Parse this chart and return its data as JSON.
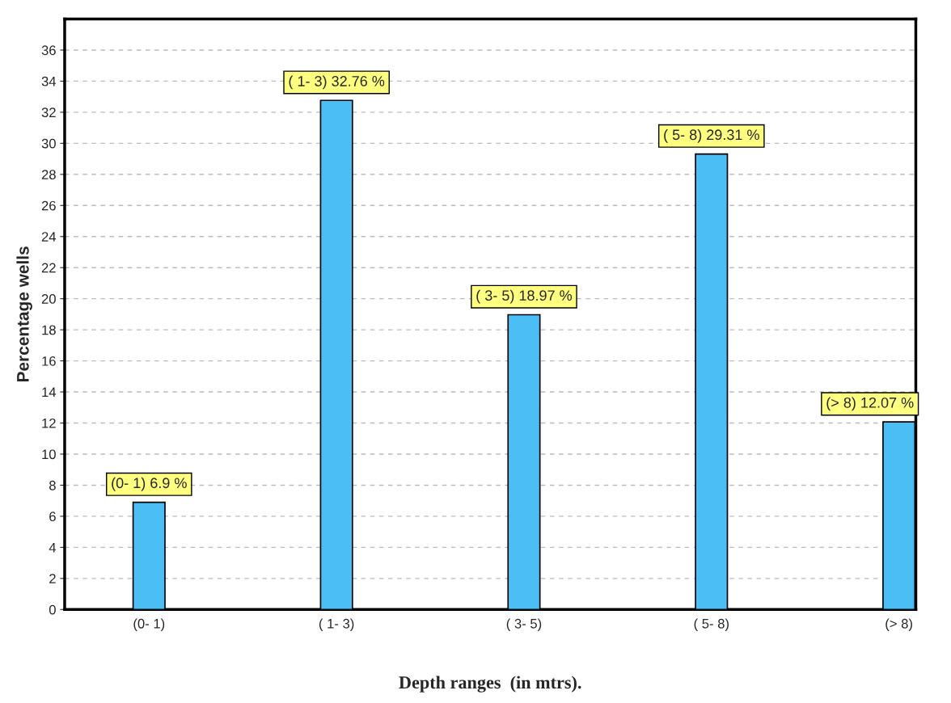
{
  "chart_data": {
    "type": "bar",
    "xlabel": "Depth ranges  (in mtrs).",
    "ylabel": "Percentage wells",
    "categories": [
      "(0- 1)",
      "( 1- 3)",
      "( 3- 5)",
      "( 5- 8)",
      "(> 8)"
    ],
    "values": [
      6.9,
      32.76,
      18.97,
      29.31,
      12.07
    ],
    "value_labels": [
      "(0- 1) 6.9 %",
      "( 1- 3) 32.76 %",
      "( 3- 5) 18.97 %",
      "( 5- 8) 29.31 %",
      "(> 8) 12.07 %"
    ],
    "color": "#4bbff5",
    "ylim": [
      0,
      38
    ],
    "yticks": [
      0,
      2,
      4,
      6,
      8,
      10,
      12,
      14,
      16,
      18,
      20,
      22,
      24,
      26,
      28,
      30,
      32,
      34,
      36
    ],
    "grid": "y"
  }
}
